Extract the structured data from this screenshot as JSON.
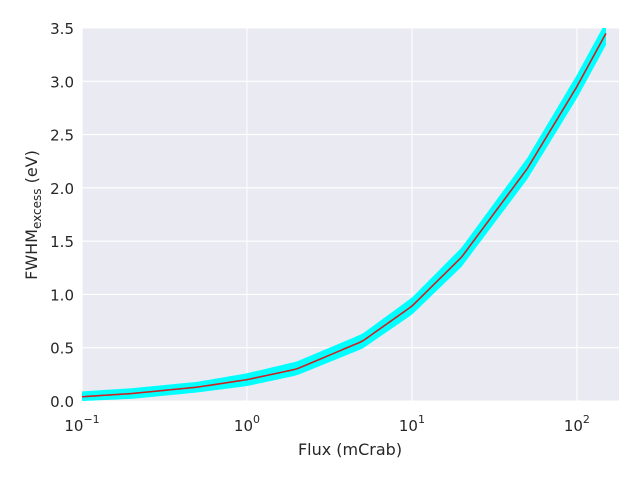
{
  "chart_data": {
    "type": "line",
    "title": "",
    "xlabel": "Flux (mCrab)",
    "ylabel_main": "FWHM",
    "ylabel_sub": "excess",
    "ylabel_unit": " (eV)",
    "x_scale": "log",
    "xlim": [
      0.1,
      180
    ],
    "ylim": [
      0,
      3.5
    ],
    "grid": true,
    "legend": "none",
    "x_ticks": [
      {
        "value": 0.1,
        "base": "10",
        "exp": "−1"
      },
      {
        "value": 1,
        "base": "10",
        "exp": "0"
      },
      {
        "value": 10,
        "base": "10",
        "exp": "1"
      },
      {
        "value": 100,
        "base": "10",
        "exp": "2"
      }
    ],
    "y_ticks": [
      {
        "value": 0.0,
        "label": "0.0"
      },
      {
        "value": 0.5,
        "label": "0.5"
      },
      {
        "value": 1.0,
        "label": "1.0"
      },
      {
        "value": 1.5,
        "label": "1.5"
      },
      {
        "value": 2.0,
        "label": "2.0"
      },
      {
        "value": 2.5,
        "label": "2.5"
      },
      {
        "value": 3.0,
        "label": "3.0"
      },
      {
        "value": 3.5,
        "label": "3.5"
      }
    ],
    "series": [
      {
        "color": "#cc2222",
        "x": [
          0.1,
          0.2,
          0.5,
          1,
          2,
          5,
          10,
          20,
          50,
          100,
          150
        ],
        "y": [
          0.04,
          0.07,
          0.13,
          0.2,
          0.3,
          0.56,
          0.89,
          1.35,
          2.18,
          2.95,
          3.45
        ]
      }
    ],
    "band": {
      "color": "#00ffff",
      "x": [
        0.1,
        0.2,
        0.5,
        1,
        2,
        5,
        10,
        20,
        50,
        100,
        150
      ],
      "lower": [
        0.0,
        0.02,
        0.08,
        0.14,
        0.24,
        0.49,
        0.81,
        1.26,
        2.08,
        2.84,
        3.34
      ],
      "upper": [
        0.09,
        0.12,
        0.18,
        0.26,
        0.37,
        0.63,
        0.97,
        1.44,
        2.28,
        3.06,
        3.56
      ]
    }
  }
}
